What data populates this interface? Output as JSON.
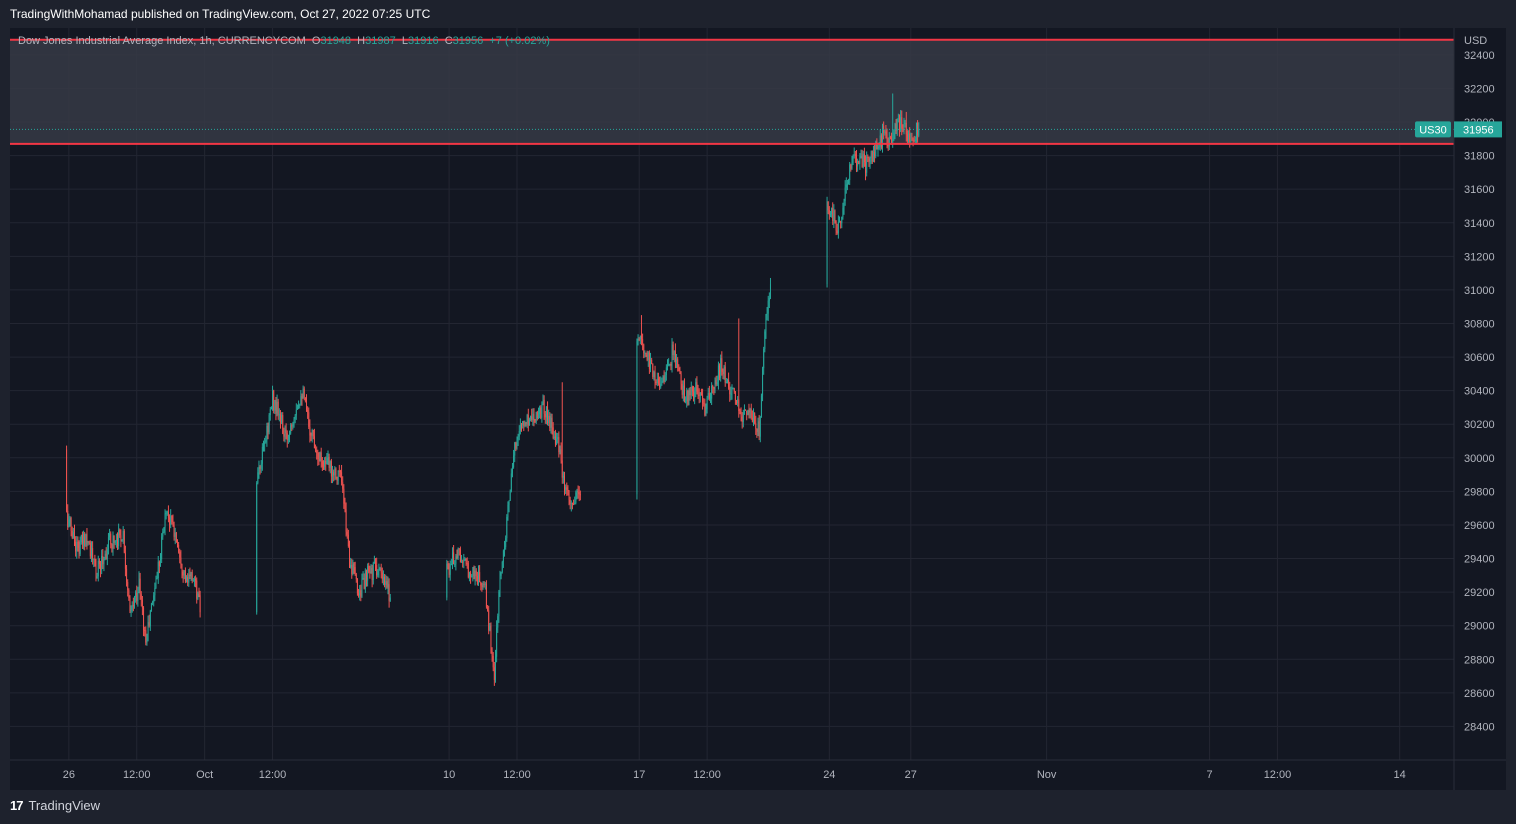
{
  "publisher": "TradingWithMohamad published on TradingView.com, Oct 27, 2022 07:25 UTC",
  "legend": {
    "symbol": "Dow Jones Industrial Average Index, 1h, CURRENCYCOM",
    "o_label": "O",
    "o": "31948",
    "h_label": "H",
    "h": "31987",
    "l_label": "L",
    "l": "31916",
    "c_label": "C",
    "c": "31956",
    "change": "+7 (+0.02%)"
  },
  "branding": "TradingView",
  "colors": {
    "up": "#26a69a",
    "down": "#ef5350",
    "level": "#f23645",
    "zone": "#363a45",
    "grid": "#232632",
    "badge": "#26a69a"
  },
  "chart_data": {
    "type": "candlestick",
    "currency": "USD",
    "ylim": [
      28200,
      32560
    ],
    "yticks": [
      28400,
      28600,
      28800,
      29000,
      29200,
      29400,
      29600,
      29800,
      30000,
      30200,
      30400,
      30600,
      30800,
      31000,
      31200,
      31400,
      31600,
      31800,
      32000,
      32200,
      32400
    ],
    "xlim": [
      "2022-09-23T20:00",
      "2022-11-16T00:00"
    ],
    "xticks": [
      {
        "t": "2022-09-26T00:00",
        "label": "26"
      },
      {
        "t": "2022-09-28T12:00",
        "label": "12:00"
      },
      {
        "t": "2022-10-01T00:00",
        "label": "Oct"
      },
      {
        "t": "2022-10-03T12:00",
        "label": "12:00"
      },
      {
        "t": "2022-10-10T00:00",
        "label": "10"
      },
      {
        "t": "2022-10-12T12:00",
        "label": "12:00"
      },
      {
        "t": "2022-10-17T00:00",
        "label": "17"
      },
      {
        "t": "2022-10-19T12:00",
        "label": "12:00"
      },
      {
        "t": "2022-10-24T00:00",
        "label": "24"
      },
      {
        "t": "2022-10-27T00:00",
        "label": "27"
      },
      {
        "t": "2022-11-01T00:00",
        "label": "Nov"
      },
      {
        "t": "2022-11-07T00:00",
        "label": "7"
      },
      {
        "t": "2022-11-09T12:00",
        "label": "12:00"
      },
      {
        "t": "2022-11-14T00:00",
        "label": "14"
      }
    ],
    "resistance_zone": {
      "top": 32490,
      "bottom": 31870
    },
    "price_badge": {
      "symbol": "US30",
      "value": 31956
    },
    "close_path": [
      [
        "2022-09-23T20:00",
        30050
      ],
      [
        "2022-09-24T14:00",
        30250
      ],
      [
        "2022-09-25T10:00",
        30000
      ],
      [
        "2022-09-25T20:00",
        29700
      ],
      [
        "2022-09-26T08:00",
        29450
      ],
      [
        "2022-09-26T16:00",
        29550
      ],
      [
        "2022-09-27T00:00",
        29300
      ],
      [
        "2022-09-27T12:00",
        29500
      ],
      [
        "2022-09-28T00:00",
        29550
      ],
      [
        "2022-09-28T06:00",
        29050
      ],
      [
        "2022-09-28T14:00",
        29250
      ],
      [
        "2022-09-28T20:00",
        28900
      ],
      [
        "2022-09-29T08:00",
        29400
      ],
      [
        "2022-09-29T14:00",
        29700
      ],
      [
        "2022-09-30T00:00",
        29500
      ],
      [
        "2022-09-30T08:00",
        29250
      ],
      [
        "2022-09-30T14:00",
        29300
      ],
      [
        "2022-09-30T20:00",
        29100
      ],
      [
        "2022-10-01T00:00",
        29300
      ],
      [
        "2022-10-01T08:00",
        28900
      ],
      [
        "2022-10-01T14:00",
        28650
      ],
      [
        "2022-10-01T20:00",
        28800
      ],
      [
        "2022-10-02T08:00",
        29100
      ],
      [
        "2022-10-02T16:00",
        29650
      ],
      [
        "2022-10-03T00:00",
        29900
      ],
      [
        "2022-10-03T08:00",
        30200
      ],
      [
        "2022-10-03T12:00",
        30350
      ],
      [
        "2022-10-03T18:00",
        30250
      ],
      [
        "2022-10-04T00:00",
        30100
      ],
      [
        "2022-10-04T08:00",
        30300
      ],
      [
        "2022-10-04T14:00",
        30400
      ],
      [
        "2022-10-04T20:00",
        30200
      ],
      [
        "2022-10-05T06:00",
        30000
      ],
      [
        "2022-10-05T14:00",
        29950
      ],
      [
        "2022-10-06T00:00",
        29900
      ],
      [
        "2022-10-06T08:00",
        29400
      ],
      [
        "2022-10-06T16:00",
        29200
      ],
      [
        "2022-10-07T00:00",
        29300
      ],
      [
        "2022-10-07T08:00",
        29350
      ],
      [
        "2022-10-07T14:00",
        29250
      ],
      [
        "2022-10-08T00:00",
        29150
      ],
      [
        "2022-10-08T08:00",
        29050
      ],
      [
        "2022-10-08T14:00",
        29200
      ],
      [
        "2022-10-09T00:00",
        29450
      ],
      [
        "2022-10-09T08:00",
        29300
      ],
      [
        "2022-10-09T14:00",
        29400
      ],
      [
        "2022-10-10T00:00",
        29350
      ],
      [
        "2022-10-10T08:00",
        29450
      ],
      [
        "2022-10-10T14:00",
        29350
      ],
      [
        "2022-10-11T00:00",
        29300
      ],
      [
        "2022-10-11T08:00",
        29200
      ],
      [
        "2022-10-11T16:00",
        28700
      ],
      [
        "2022-10-11T20:00",
        29200
      ],
      [
        "2022-10-12T04:00",
        29700
      ],
      [
        "2022-10-12T12:00",
        30150
      ],
      [
        "2022-10-13T00:00",
        30250
      ],
      [
        "2022-10-13T12:00",
        30300
      ],
      [
        "2022-10-14T00:00",
        30100
      ],
      [
        "2022-10-14T06:00",
        29800
      ],
      [
        "2022-10-14T12:00",
        29700
      ],
      [
        "2022-10-14T20:00",
        29800
      ],
      [
        "2022-10-15T06:00",
        30000
      ],
      [
        "2022-10-15T14:00",
        30300
      ],
      [
        "2022-10-16T00:00",
        30450
      ],
      [
        "2022-10-16T06:00",
        30550
      ],
      [
        "2022-10-16T12:00",
        30650
      ],
      [
        "2022-10-17T00:00",
        30700
      ],
      [
        "2022-10-17T08:00",
        30600
      ],
      [
        "2022-10-17T16:00",
        30450
      ],
      [
        "2022-10-18T00:00",
        30500
      ],
      [
        "2022-10-18T06:00",
        30650
      ],
      [
        "2022-10-18T12:00",
        30450
      ],
      [
        "2022-10-18T18:00",
        30350
      ],
      [
        "2022-10-19T02:00",
        30400
      ],
      [
        "2022-10-19T10:00",
        30300
      ],
      [
        "2022-10-19T18:00",
        30400
      ],
      [
        "2022-10-20T00:00",
        30550
      ],
      [
        "2022-10-20T06:00",
        30450
      ],
      [
        "2022-10-20T12:00",
        30350
      ],
      [
        "2022-10-20T18:00",
        30250
      ],
      [
        "2022-10-21T00:00",
        30300
      ],
      [
        "2022-10-21T06:00",
        30200
      ],
      [
        "2022-10-21T10:00",
        30150
      ],
      [
        "2022-10-21T14:00",
        30700
      ],
      [
        "2022-10-21T20:00",
        31000
      ],
      [
        "2022-10-22T02:00",
        31300
      ],
      [
        "2022-10-22T08:00",
        31150
      ],
      [
        "2022-10-22T14:00",
        31050
      ],
      [
        "2022-10-22T20:00",
        31250
      ],
      [
        "2022-10-23T02:00",
        31400
      ],
      [
        "2022-10-23T08:00",
        31550
      ],
      [
        "2022-10-23T14:00",
        31500
      ],
      [
        "2022-10-23T20:00",
        31550
      ],
      [
        "2022-10-24T02:00",
        31450
      ],
      [
        "2022-10-24T08:00",
        31350
      ],
      [
        "2022-10-24T14:00",
        31600
      ],
      [
        "2022-10-24T20:00",
        31750
      ],
      [
        "2022-10-25T02:00",
        31800
      ],
      [
        "2022-10-25T08:00",
        31750
      ],
      [
        "2022-10-25T14:00",
        31800
      ],
      [
        "2022-10-25T20:00",
        31850
      ],
      [
        "2022-10-26T00:00",
        31950
      ],
      [
        "2022-10-26T04:00",
        31850
      ],
      [
        "2022-10-26T10:00",
        31950
      ],
      [
        "2022-10-26T16:00",
        32000
      ],
      [
        "2022-10-26T22:00",
        31920
      ],
      [
        "2022-10-27T07:00",
        31956
      ]
    ],
    "extreme_bars": [
      {
        "t": "2022-10-01T09:00",
        "low": 28620
      },
      {
        "t": "2022-10-11T17:00",
        "low": 28660
      },
      {
        "t": "2022-10-14T04:00",
        "high": 30450
      },
      {
        "t": "2022-10-17T02:00",
        "high": 30850
      },
      {
        "t": "2022-10-20T16:00",
        "high": 30830
      },
      {
        "t": "2022-10-22T16:00",
        "low": 30900
      },
      {
        "t": "2022-10-25T20:00",
        "high": 31880
      },
      {
        "t": "2022-10-26T08:00",
        "high": 32170
      },
      {
        "t": "2022-10-26T20:00",
        "high": 32060
      }
    ]
  }
}
